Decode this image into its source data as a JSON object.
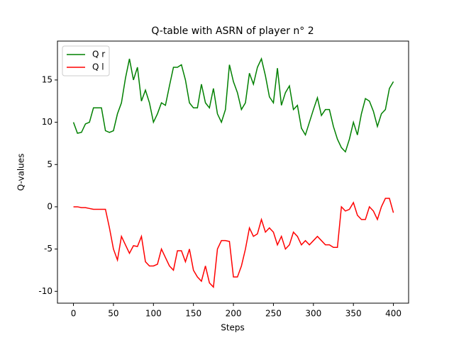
{
  "chart_data": {
    "type": "line",
    "title": "Q-table with ASRN of player n° 2",
    "xlabel": "Steps",
    "ylabel": "Q-values",
    "x": [
      0,
      5,
      10,
      15,
      20,
      25,
      30,
      35,
      40,
      45,
      50,
      55,
      60,
      65,
      70,
      75,
      80,
      85,
      90,
      95,
      100,
      105,
      110,
      115,
      120,
      125,
      130,
      135,
      140,
      145,
      150,
      155,
      160,
      165,
      170,
      175,
      180,
      185,
      190,
      195,
      200,
      205,
      210,
      215,
      220,
      225,
      230,
      235,
      240,
      245,
      250,
      255,
      260,
      265,
      270,
      275,
      280,
      285,
      290,
      295,
      300,
      305,
      310,
      315,
      320,
      325,
      330,
      335,
      340,
      345,
      350,
      355,
      360,
      365,
      370,
      375,
      380,
      385,
      390,
      395,
      400
    ],
    "series": [
      {
        "name": "Q r",
        "color": "#008000",
        "values": [
          10.0,
          8.7,
          8.8,
          9.8,
          10.0,
          11.7,
          11.7,
          11.7,
          9.0,
          8.8,
          9.0,
          11.0,
          12.3,
          15.2,
          17.5,
          15.0,
          16.5,
          12.5,
          13.8,
          12.3,
          10.0,
          11.0,
          12.3,
          12.0,
          14.3,
          16.5,
          16.5,
          16.8,
          15.0,
          12.3,
          11.7,
          11.7,
          14.5,
          12.3,
          11.7,
          14.0,
          11.0,
          10.0,
          11.5,
          16.8,
          14.8,
          13.5,
          11.5,
          12.3,
          15.8,
          14.5,
          16.5,
          17.5,
          15.5,
          13.0,
          12.3,
          16.4,
          12.0,
          13.5,
          14.3,
          11.5,
          12.0,
          9.3,
          8.5,
          10.0,
          11.5,
          12.9,
          10.8,
          11.5,
          11.5,
          9.5,
          8.0,
          7.0,
          6.5,
          8.0,
          10.0,
          8.5,
          11.0,
          12.8,
          12.5,
          11.3,
          9.5,
          11.0,
          11.5,
          14.0,
          14.8
        ]
      },
      {
        "name": "Q l",
        "color": "#ff0000",
        "values": [
          0,
          0,
          -0.1,
          -0.1,
          -0.2,
          -0.3,
          -0.3,
          -0.3,
          -0.3,
          -2.5,
          -5,
          -6.3,
          -3.5,
          -4.5,
          -5.5,
          -4.6,
          -4.7,
          -3.5,
          -6.5,
          -7.0,
          -7.0,
          -6.8,
          -5.0,
          -6.0,
          -7.0,
          -7.5,
          -5.2,
          -5.2,
          -6.5,
          -5.0,
          -7.5,
          -8.3,
          -8.8,
          -7.0,
          -9.0,
          -9.5,
          -5.0,
          -4.0,
          -4.0,
          -4.1,
          -8.3,
          -8.3,
          -7.0,
          -5.0,
          -2.5,
          -3.5,
          -3.2,
          -1.5,
          -3.0,
          -2.5,
          -3.0,
          -4.5,
          -3.5,
          -5.0,
          -4.5,
          -3.0,
          -3.5,
          -4.5,
          -4.0,
          -4.5,
          -4.0,
          -3.5,
          -4.0,
          -4.5,
          -4.5,
          -4.8,
          -4.8,
          0.0,
          -0.5,
          -0.3,
          0.5,
          -1.0,
          -1.5,
          -1.5,
          0.0,
          -0.5,
          -1.5,
          0.0,
          1.0,
          1.0,
          -0.7
        ]
      }
    ],
    "xlim": [
      -20,
      419
    ],
    "ylim": [
      -11.4,
      19.6
    ],
    "xticks": [
      0,
      50,
      100,
      150,
      200,
      250,
      300,
      350,
      400
    ],
    "yticks": [
      -10,
      -5,
      0,
      5,
      10,
      15
    ],
    "legend": "upper left"
  }
}
